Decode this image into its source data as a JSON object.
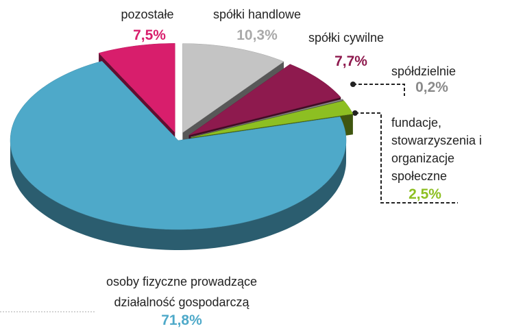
{
  "chart_data": {
    "type": "pie",
    "categories": [
      "spółki  handlowe",
      "spółki cywilne",
      "spółdzielnie",
      "fundacje, stowarzyszenia i organizacje społeczne",
      "osoby fizyczne prowadzące działalność gospodarczą",
      "pozostałe"
    ],
    "values": [
      10.3,
      7.7,
      0.2,
      2.5,
      71.8,
      7.5
    ],
    "value_labels": [
      "10,3%",
      "7,7%",
      "0,2%",
      "2,5%",
      "71,8%",
      "7,5%"
    ],
    "colors": [
      "#c4c4c4",
      "#8e1a4e",
      "#8a8a8a",
      "#8dbf22",
      "#4ea9c9",
      "#d81e6c"
    ],
    "label_colors": [
      "#a9a9a9",
      "#8e1a4e",
      "#8a8a8a",
      "#8dbf22",
      "#4ea9c9",
      "#d81e6c"
    ]
  }
}
